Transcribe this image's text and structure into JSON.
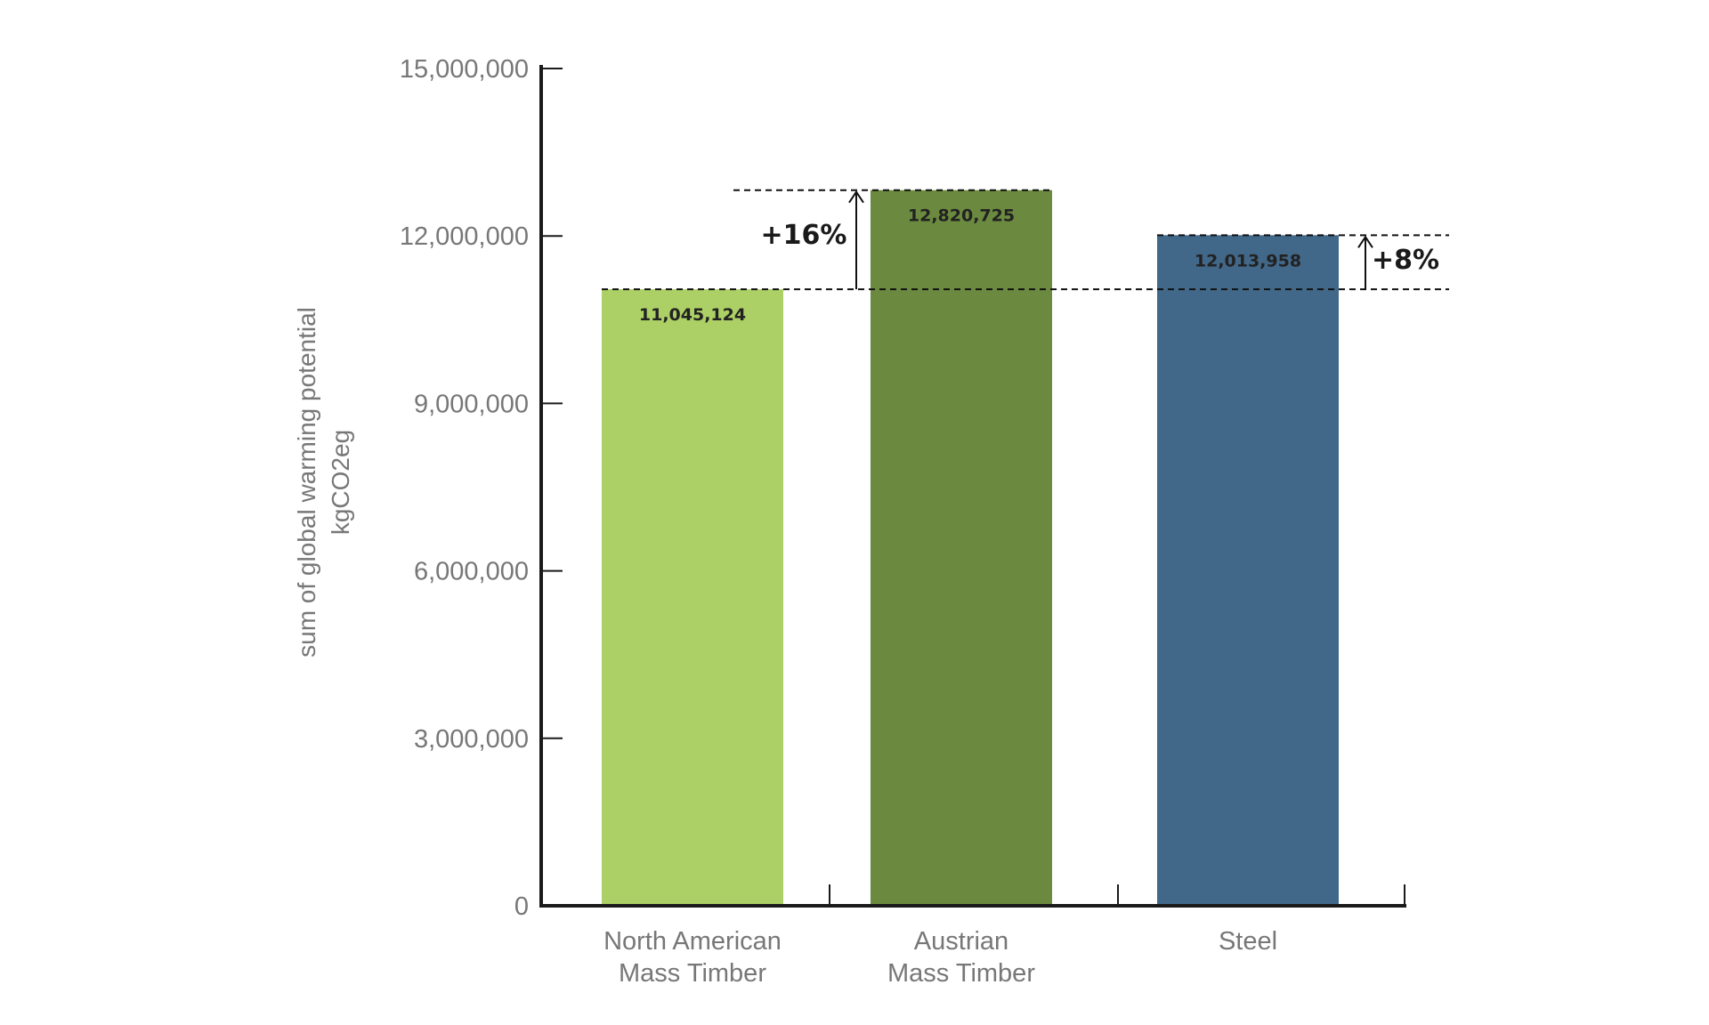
{
  "chart_data": {
    "type": "bar",
    "categories": [
      "North American\nMass Timber",
      "Austrian\nMass Timber",
      "Steel"
    ],
    "values": [
      11045124,
      12820725,
      12013958
    ],
    "data_labels": [
      "11,045,124",
      "12,820,725",
      "12,013,958"
    ],
    "colors": [
      "#acd065",
      "#6b8a3f",
      "#426889"
    ],
    "ylabel": [
      "sum of global warming potential",
      "kgCO2eg"
    ],
    "xlabel": "",
    "title": "",
    "ylim": [
      0,
      15000000
    ],
    "yticks": [
      0,
      3000000,
      6000000,
      9000000,
      12000000,
      15000000
    ],
    "ytick_labels": [
      "0",
      "3,000,000",
      "6,000,000",
      "9,000,000",
      "12,000,000",
      "15,000,000"
    ],
    "grid": false,
    "annotations": [
      {
        "label": "+16%",
        "from_category": 0,
        "to_category": 1
      },
      {
        "label": "+8%",
        "from_category": 0,
        "to_category": 2
      }
    ]
  }
}
